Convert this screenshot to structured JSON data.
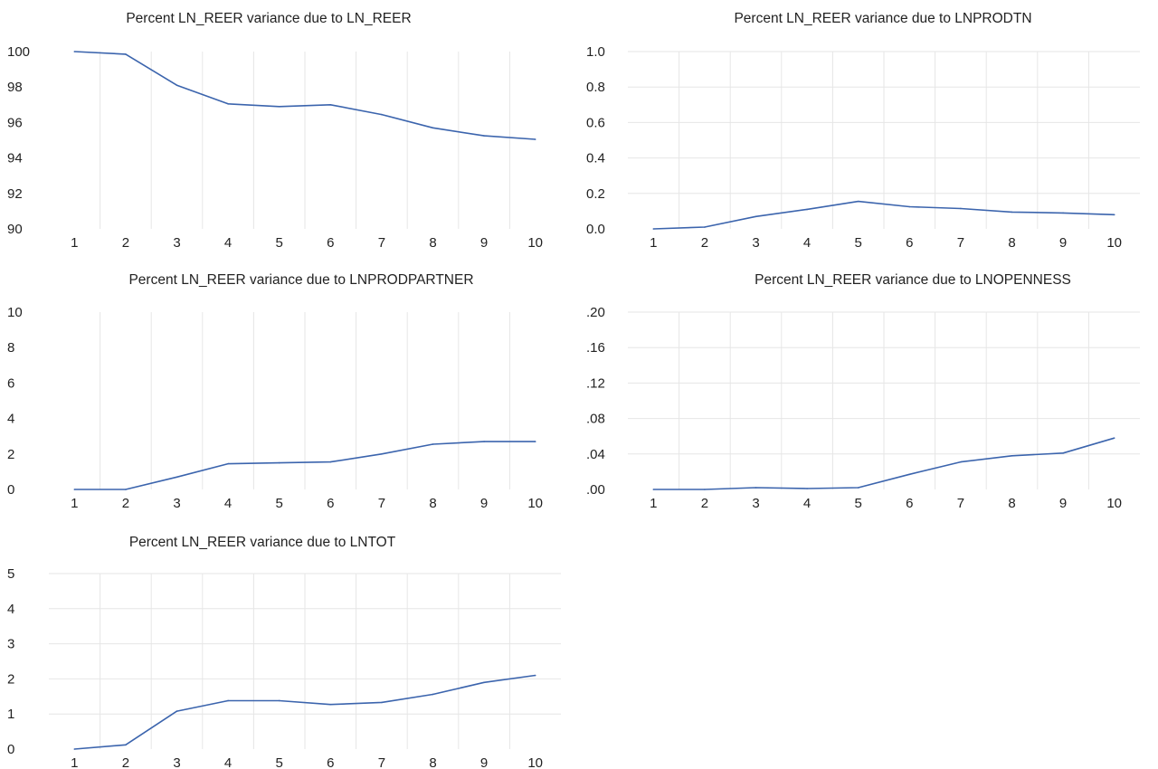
{
  "figure": {
    "colors": {
      "line": "#3b64ad",
      "grid": "#e6e6e6",
      "text": "#222222",
      "background": "#ffffff"
    }
  },
  "chart_data": [
    {
      "type": "line",
      "title": "Percent LN_REER variance due to LN_REER",
      "xlabel": "",
      "ylabel": "",
      "x": [
        1,
        2,
        3,
        4,
        5,
        6,
        7,
        8,
        9,
        10
      ],
      "series": [
        {
          "values": [
            100.0,
            99.85,
            98.1,
            97.05,
            96.9,
            97.0,
            96.45,
            95.7,
            95.25,
            95.05
          ]
        }
      ],
      "ylim": [
        90,
        100
      ],
      "yticks": [
        90,
        92,
        94,
        96,
        98,
        100
      ],
      "ytick_labels": [
        "90",
        "92",
        "94",
        "96",
        "98",
        "100"
      ],
      "grid": "vertical"
    },
    {
      "type": "line",
      "title": "Percent LN_REER variance due to LNPRODTN",
      "xlabel": "",
      "ylabel": "",
      "x": [
        1,
        2,
        3,
        4,
        5,
        6,
        7,
        8,
        9,
        10
      ],
      "series": [
        {
          "values": [
            0.0,
            0.01,
            0.07,
            0.11,
            0.155,
            0.125,
            0.115,
            0.095,
            0.09,
            0.08
          ]
        }
      ],
      "ylim": [
        0,
        1
      ],
      "yticks": [
        0,
        0.2,
        0.4,
        0.6,
        0.8,
        1.0
      ],
      "ytick_labels": [
        "0.0",
        "0.2",
        "0.4",
        "0.6",
        "0.8",
        "1.0"
      ],
      "grid": "both"
    },
    {
      "type": "line",
      "title": "Percent LN_REER variance due to LNPRODPARTNER",
      "xlabel": "",
      "ylabel": "",
      "x": [
        1,
        2,
        3,
        4,
        5,
        6,
        7,
        8,
        9,
        10
      ],
      "series": [
        {
          "values": [
            0.0,
            0.0,
            0.7,
            1.45,
            1.5,
            1.55,
            2.0,
            2.55,
            2.7,
            2.7
          ]
        }
      ],
      "ylim": [
        0,
        10
      ],
      "yticks": [
        0,
        2,
        4,
        6,
        8,
        10
      ],
      "ytick_labels": [
        "0",
        "2",
        "4",
        "6",
        "8",
        "10"
      ],
      "grid": "vertical"
    },
    {
      "type": "line",
      "title": "Percent LN_REER variance due to LNOPENNESS",
      "xlabel": "",
      "ylabel": "",
      "x": [
        1,
        2,
        3,
        4,
        5,
        6,
        7,
        8,
        9,
        10
      ],
      "series": [
        {
          "values": [
            0.0,
            0.0,
            0.002,
            0.001,
            0.002,
            0.017,
            0.031,
            0.038,
            0.041,
            0.058
          ]
        }
      ],
      "ylim": [
        0,
        0.2
      ],
      "yticks": [
        0,
        0.04,
        0.08,
        0.12,
        0.16,
        0.2
      ],
      "ytick_labels": [
        ".00",
        ".04",
        ".08",
        ".12",
        ".16",
        ".20"
      ],
      "grid": "both"
    },
    {
      "type": "line",
      "title": "Percent LN_REER variance due to LNTOT",
      "xlabel": "",
      "ylabel": "",
      "x": [
        1,
        2,
        3,
        4,
        5,
        6,
        7,
        8,
        9,
        10
      ],
      "series": [
        {
          "values": [
            0.0,
            0.12,
            1.08,
            1.38,
            1.38,
            1.27,
            1.33,
            1.56,
            1.9,
            2.1
          ]
        }
      ],
      "ylim": [
        0,
        5
      ],
      "yticks": [
        0,
        1,
        2,
        3,
        4,
        5
      ],
      "ytick_labels": [
        "0",
        "1",
        "2",
        "3",
        "4",
        "5"
      ],
      "grid": "both"
    }
  ]
}
